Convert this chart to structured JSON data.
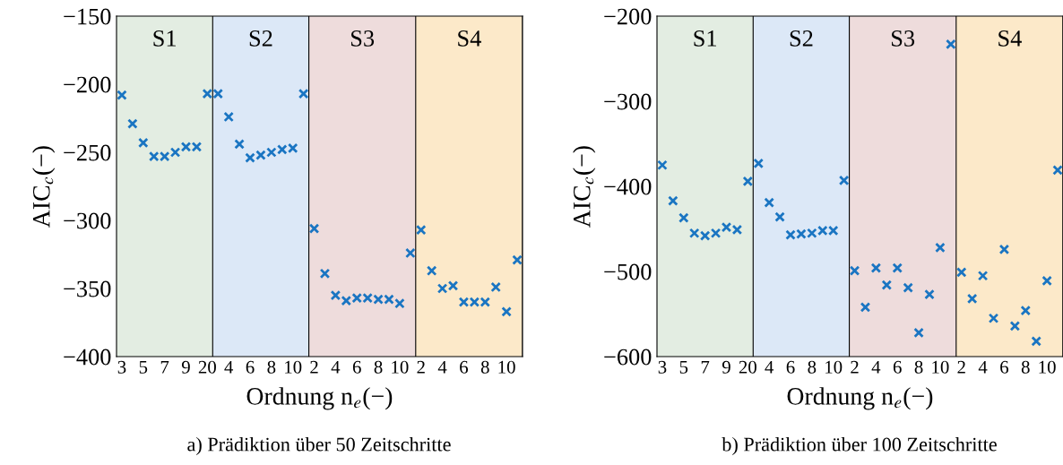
{
  "chart_data": [
    {
      "type": "scatter",
      "title": "a) Prädiktion über 50 Zeitschritte",
      "xlabel": "Ordnung n$_{e}$(−)",
      "ylabel": "AIC$_{c}$(−)",
      "marker": "cross",
      "grid": false,
      "legend": false,
      "categories": [
        "3",
        null,
        "5",
        null,
        "7",
        null,
        "9",
        null,
        "20",
        null,
        "4",
        null,
        "6",
        null,
        "8",
        null,
        "10",
        null,
        "2",
        null,
        "4",
        null,
        "6",
        null,
        "8",
        null,
        "10",
        null,
        "2",
        null,
        "4",
        null,
        "6",
        null,
        "8",
        null,
        "10",
        null
      ],
      "series": [
        {
          "color": "#1a75c2",
          "values": [
            -208,
            -229,
            -243,
            -253,
            -253,
            -250,
            -246,
            -246,
            -207,
            -207,
            -224,
            -244,
            -254,
            -252,
            -250,
            -248,
            -247,
            -207,
            -306,
            -339,
            -355,
            -359,
            -357,
            -357,
            -358,
            -358,
            -361,
            -324,
            -307,
            -337,
            -350,
            -348,
            -360,
            -360,
            -360,
            -349,
            -367,
            -329
          ]
        }
      ],
      "ylim": [
        -400,
        -150
      ],
      "yticks": [
        -400,
        -350,
        -300,
        -250,
        -200,
        -150
      ],
      "annotations": [
        "S1",
        "S2",
        "S3",
        "S4"
      ]
    },
    {
      "type": "scatter",
      "title": "b) Prädiktion über 100 Zeitschritte",
      "xlabel": "Ordnung n$_{e}$(−)",
      "ylabel": "AIC$_{c}$(−)",
      "marker": "cross",
      "grid": false,
      "legend": false,
      "categories": [
        "3",
        null,
        "5",
        null,
        "7",
        null,
        "9",
        null,
        "20",
        null,
        "4",
        null,
        "6",
        null,
        "8",
        null,
        "10",
        null,
        "2",
        null,
        "4",
        null,
        "6",
        null,
        "8",
        null,
        "10",
        null,
        "2",
        null,
        "4",
        null,
        "6",
        null,
        "8",
        null,
        "10",
        null
      ],
      "series": [
        {
          "color": "#1a75c2",
          "values": [
            -375,
            -417,
            -437,
            -455,
            -458,
            -455,
            -448,
            -451,
            -394,
            -373,
            -419,
            -436,
            -457,
            -456,
            -455,
            -452,
            -452,
            -393,
            -499,
            -542,
            -496,
            -516,
            -496,
            -519,
            -572,
            -527,
            -472,
            -233,
            -501,
            -532,
            -505,
            -555,
            -474,
            -564,
            -546,
            -582,
            -511,
            -381
          ]
        }
      ],
      "ylim": [
        -600,
        -200
      ],
      "yticks": [
        -600,
        -500,
        -400,
        -300,
        -200
      ],
      "annotations": [
        "S1",
        "S2",
        "S3",
        "S4"
      ]
    }
  ]
}
